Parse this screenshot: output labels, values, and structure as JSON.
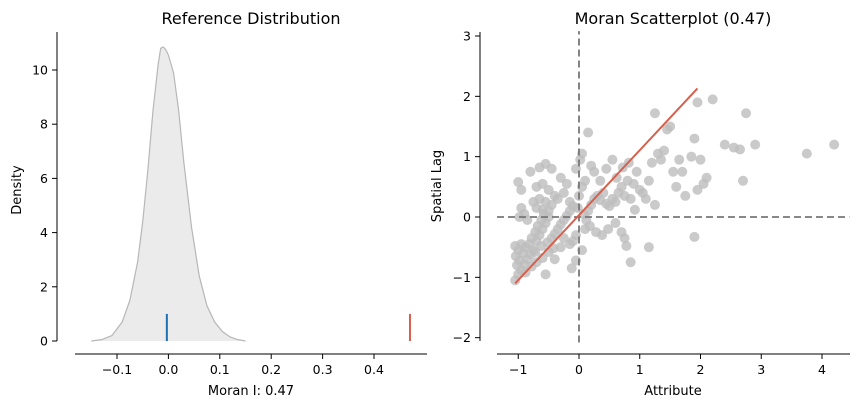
{
  "chart_data": [
    {
      "type": "area",
      "title": "Reference Distribution",
      "xlabel": "Moran I: 0.47",
      "ylabel": "Density",
      "xlim": [
        -0.19,
        0.5
      ],
      "ylim": [
        -0.25,
        11.2
      ],
      "xticks": [
        -0.1,
        0.0,
        0.1,
        0.2,
        0.3,
        0.4
      ],
      "xtick_labels": [
        "−0.1",
        "0.0",
        "0.1",
        "0.2",
        "0.3",
        "0.4"
      ],
      "yticks": [
        0,
        2,
        4,
        6,
        8,
        10
      ],
      "ytick_labels": [
        "0",
        "2",
        "4",
        "6",
        "8",
        "10"
      ],
      "grid": false,
      "kde": {
        "x": [
          -0.15,
          -0.13,
          -0.11,
          -0.09,
          -0.075,
          -0.06,
          -0.05,
          -0.04,
          -0.03,
          -0.02,
          -0.015,
          -0.01,
          -0.005,
          0.0,
          0.01,
          0.02,
          0.03,
          0.045,
          0.06,
          0.075,
          0.09,
          0.105,
          0.12,
          0.135,
          0.15
        ],
        "y": [
          0.0,
          0.05,
          0.2,
          0.7,
          1.5,
          2.9,
          4.4,
          6.3,
          8.5,
          10.2,
          10.8,
          10.85,
          10.75,
          10.55,
          9.9,
          8.5,
          6.6,
          4.2,
          2.4,
          1.3,
          0.7,
          0.35,
          0.15,
          0.05,
          0.0
        ]
      },
      "fill_color": "#ebebeb",
      "line_color": "#b7b7b7",
      "markers": [
        {
          "x": -0.003,
          "height": 1.0,
          "color": "#1f6fb4"
        },
        {
          "x": 0.47,
          "height": 1.0,
          "color": "#d6604d"
        }
      ]
    },
    {
      "type": "scatter",
      "title": "Moran Scatterplot (0.47)",
      "xlabel": "Attribute",
      "ylabel": "Spatial Lag",
      "xlim": [
        -1.35,
        4.45
      ],
      "ylim": [
        -2.08,
        3.08
      ],
      "xticks": [
        -1,
        0,
        1,
        2,
        3,
        4
      ],
      "xtick_labels": [
        "−1",
        "0",
        "1",
        "2",
        "3",
        "4"
      ],
      "yticks": [
        -2,
        -1,
        0,
        1,
        2,
        3
      ],
      "ytick_labels": [
        "−2",
        "−1",
        "0",
        "1",
        "2",
        "3"
      ],
      "grid": false,
      "point_color": "#bdbdbd",
      "fit_line": {
        "x": [
          -1.05,
          1.95
        ],
        "y": [
          -1.1,
          2.13
        ],
        "color": "#d6604d"
      },
      "reference_lines": {
        "x": 0,
        "y": 0,
        "color": "#777777"
      },
      "points": [
        [
          -1.05,
          -1.05
        ],
        [
          -1.0,
          -0.95
        ],
        [
          -0.95,
          -0.88
        ],
        [
          -1.02,
          -0.8
        ],
        [
          -0.98,
          -0.72
        ],
        [
          -1.04,
          -0.65
        ],
        [
          -0.92,
          -0.6
        ],
        [
          -1.0,
          -0.55
        ],
        [
          -0.88,
          -0.5
        ],
        [
          -0.95,
          -0.45
        ],
        [
          -1.05,
          -0.48
        ],
        [
          -0.9,
          -0.78
        ],
        [
          -0.85,
          -0.7
        ],
        [
          -0.8,
          -0.62
        ],
        [
          -0.75,
          -0.55
        ],
        [
          -0.82,
          -0.45
        ],
        [
          -0.7,
          -0.4
        ],
        [
          -0.78,
          -0.35
        ],
        [
          -0.65,
          -0.3
        ],
        [
          -0.72,
          -0.25
        ],
        [
          -0.6,
          -0.2
        ],
        [
          -0.68,
          -0.15
        ],
        [
          -0.55,
          -0.1
        ],
        [
          -0.62,
          -0.05
        ],
        [
          -0.5,
          0.0
        ],
        [
          -0.58,
          0.05
        ],
        [
          -0.45,
          -0.35
        ],
        [
          -0.52,
          -0.42
        ],
        [
          -0.4,
          -0.28
        ],
        [
          -0.35,
          -0.2
        ],
        [
          -0.3,
          -0.12
        ],
        [
          -0.25,
          -0.05
        ],
        [
          -0.2,
          0.02
        ],
        [
          -0.15,
          0.1
        ],
        [
          -0.1,
          -0.4
        ],
        [
          -0.05,
          -0.3
        ],
        [
          -0.95,
          0.15
        ],
        [
          -0.9,
          0.05
        ],
        [
          -0.98,
          0.0
        ],
        [
          -0.85,
          -0.05
        ],
        [
          -1.0,
          0.58
        ],
        [
          -0.95,
          0.45
        ],
        [
          -0.8,
          0.75
        ],
        [
          -0.65,
          0.82
        ],
        [
          -0.55,
          0.88
        ],
        [
          -0.45,
          0.8
        ],
        [
          -0.7,
          0.5
        ],
        [
          -0.6,
          0.55
        ],
        [
          -0.5,
          0.45
        ],
        [
          -0.4,
          0.35
        ],
        [
          -0.55,
          0.25
        ],
        [
          -0.45,
          0.2
        ],
        [
          -0.35,
          0.3
        ],
        [
          -0.75,
          0.25
        ],
        [
          -0.7,
          0.15
        ],
        [
          -0.62,
          -0.48
        ],
        [
          -0.72,
          -0.58
        ],
        [
          -0.88,
          -0.92
        ],
        [
          -0.78,
          -0.82
        ],
        [
          -0.7,
          -0.75
        ],
        [
          -0.6,
          -0.68
        ],
        [
          -0.5,
          -0.58
        ],
        [
          -0.55,
          -0.95
        ],
        [
          -0.4,
          -0.7
        ],
        [
          -0.3,
          -0.5
        ],
        [
          -0.25,
          -0.35
        ],
        [
          -0.15,
          -0.45
        ],
        [
          -0.12,
          -0.85
        ],
        [
          -0.05,
          -0.72
        ],
        [
          0.05,
          -0.55
        ],
        [
          0.1,
          -0.2
        ],
        [
          0.15,
          0.1
        ],
        [
          0.2,
          0.2
        ],
        [
          0.25,
          0.3
        ],
        [
          0.3,
          0.35
        ],
        [
          0.35,
          0.28
        ],
        [
          0.4,
          0.4
        ],
        [
          0.45,
          0.22
        ],
        [
          0.5,
          0.18
        ],
        [
          0.55,
          0.3
        ],
        [
          0.6,
          0.25
        ],
        [
          0.65,
          0.4
        ],
        [
          0.7,
          0.5
        ],
        [
          0.75,
          0.35
        ],
        [
          0.8,
          0.6
        ],
        [
          0.85,
          0.3
        ],
        [
          0.9,
          0.55
        ],
        [
          0.95,
          0.75
        ],
        [
          1.0,
          0.45
        ],
        [
          0.05,
          0.5
        ],
        [
          0.1,
          0.6
        ],
        [
          0.02,
          0.95
        ],
        [
          0.05,
          1.05
        ],
        [
          0.15,
          1.4
        ],
        [
          0.2,
          0.85
        ],
        [
          -0.05,
          0.8
        ],
        [
          0.25,
          0.75
        ],
        [
          0.35,
          0.6
        ],
        [
          0.45,
          0.8
        ],
        [
          0.55,
          0.95
        ],
        [
          0.0,
          0.35
        ],
        [
          -0.02,
          0.15
        ],
        [
          0.08,
          0.05
        ],
        [
          0.12,
          -0.05
        ],
        [
          0.18,
          -0.15
        ],
        [
          0.28,
          -0.25
        ],
        [
          0.38,
          -0.3
        ],
        [
          0.48,
          -0.2
        ],
        [
          0.6,
          -0.1
        ],
        [
          0.7,
          -0.25
        ],
        [
          0.78,
          -0.48
        ],
        [
          0.85,
          -0.75
        ],
        [
          0.75,
          -0.35
        ],
        [
          -0.2,
          0.55
        ],
        [
          -0.25,
          0.4
        ],
        [
          -0.3,
          0.65
        ],
        [
          -0.15,
          0.25
        ],
        [
          -0.1,
          0.18
        ],
        [
          1.05,
          0.4
        ],
        [
          1.1,
          0.3
        ],
        [
          1.15,
          0.6
        ],
        [
          1.2,
          0.9
        ],
        [
          1.25,
          0.2
        ],
        [
          1.3,
          1.05
        ],
        [
          1.35,
          0.95
        ],
        [
          1.4,
          1.1
        ],
        [
          1.45,
          1.45
        ],
        [
          1.5,
          1.5
        ],
        [
          1.55,
          0.75
        ],
        [
          1.6,
          0.5
        ],
        [
          1.65,
          0.95
        ],
        [
          1.7,
          0.75
        ],
        [
          1.85,
          1.0
        ],
        [
          1.9,
          1.3
        ],
        [
          1.95,
          1.9
        ],
        [
          2.0,
          0.95
        ],
        [
          2.05,
          0.55
        ],
        [
          2.1,
          0.65
        ],
        [
          2.2,
          1.95
        ],
        [
          2.4,
          1.2
        ],
        [
          2.55,
          1.15
        ],
        [
          2.65,
          1.12
        ],
        [
          2.7,
          0.6
        ],
        [
          2.75,
          1.72
        ],
        [
          2.9,
          1.2
        ],
        [
          3.75,
          1.05
        ],
        [
          4.2,
          1.2
        ],
        [
          1.25,
          1.72
        ],
        [
          1.15,
          -0.5
        ],
        [
          1.9,
          -0.33
        ],
        [
          1.95,
          0.45
        ],
        [
          1.75,
          0.35
        ],
        [
          0.62,
          0.65
        ],
        [
          0.72,
          0.82
        ],
        [
          0.82,
          0.9
        ],
        [
          0.92,
          0.12
        ],
        [
          -0.65,
          0.3
        ],
        [
          -0.6,
          0.12
        ],
        [
          -0.5,
          0.1
        ],
        [
          -0.42,
          -0.52
        ]
      ]
    }
  ]
}
